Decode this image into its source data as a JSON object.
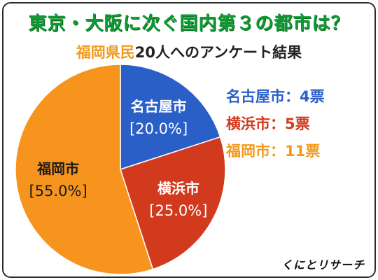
{
  "title": "東京・大阪に次ぐ国内第３の都市は？",
  "subtitle": {
    "accent": "福岡県民",
    "rest": "20人へのアンケート結果"
  },
  "credit": "くにとリサーチ",
  "colors": {
    "title": "#119a33",
    "accent": "#f29a1d"
  },
  "chart_data": {
    "type": "pie",
    "title": "東京・大阪に次ぐ国内第３の都市は？",
    "subtitle": "福岡県民20人へのアンケート結果",
    "slices": [
      {
        "label": "名古屋市",
        "percent_label": "[20.0%]",
        "value": 4,
        "legend": "名古屋市：4票",
        "color": "#2a5fc8",
        "legend_color": "#2a5fc8"
      },
      {
        "label": "横浜市",
        "percent_label": "[25.0%]",
        "value": 5,
        "legend": "横浜市：5票",
        "color": "#d23a1e",
        "legend_color": "#d23a1e"
      },
      {
        "label": "福岡市",
        "percent_label": "[55.0%]",
        "value": 11,
        "legend": "福岡市：11票",
        "color": "#f6941d",
        "legend_color": "#f29a1d"
      }
    ],
    "legend_position": "right"
  }
}
